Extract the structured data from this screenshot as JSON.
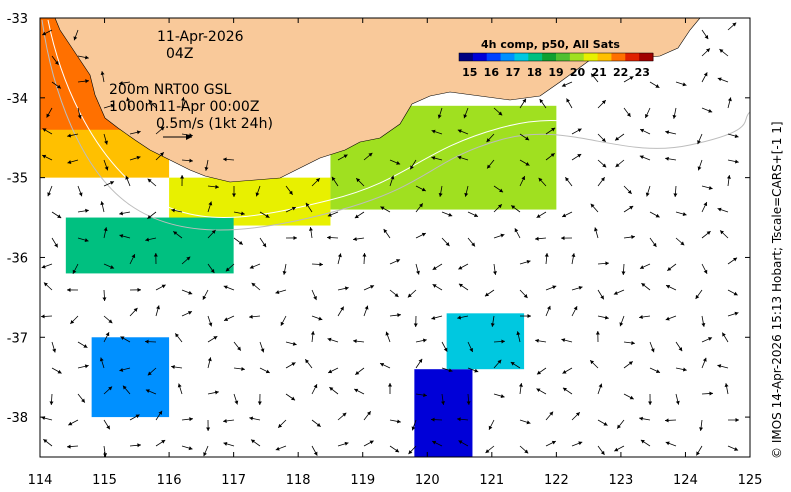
{
  "chart_data": {
    "type": "map",
    "region": {
      "lon": [
        114,
        125
      ],
      "lat": [
        -38.5,
        -33
      ]
    },
    "x_ticks": [
      114,
      115,
      116,
      117,
      118,
      119,
      120,
      121,
      122,
      123,
      124,
      125
    ],
    "y_ticks": [
      -33,
      -34,
      -35,
      -36,
      -37,
      -38
    ],
    "date": "11-Apr-2026",
    "time": "04Z",
    "depth_line_1": "200m  NRT00 GSL",
    "depth_line_2": "1000m11-Apr 00:00Z",
    "scale_label": "0.5m/s (1kt 24h)",
    "colorbar": {
      "title": "4h comp, p50, All Sats",
      "ticks": [
        15,
        16,
        17,
        18,
        19,
        20,
        21,
        22,
        23
      ],
      "range": [
        14.5,
        23.5
      ],
      "colors": [
        "#000080",
        "#0000d8",
        "#0040ff",
        "#0090ff",
        "#00c8e0",
        "#00c080",
        "#10a030",
        "#50c030",
        "#a0e020",
        "#e8f000",
        "#ffc000",
        "#ff7000",
        "#e02000",
        "#a00000"
      ]
    },
    "credit": "© IMOS 14-Apr-2026 15:13 Hobart; Tscale=CARS+[-1 1]",
    "land_color": "#f9c99a",
    "sst_patches": [
      {
        "lon": [
          114.0,
          116.0
        ],
        "lat": [
          -35.0,
          -33.0
        ],
        "temp": 21.4
      },
      {
        "lon": [
          114.0,
          115.4
        ],
        "lat": [
          -34.4,
          -33.0
        ],
        "temp": 21.9
      },
      {
        "lon": [
          116.0,
          118.5
        ],
        "lat": [
          -35.6,
          -35.0
        ],
        "temp": 20.3
      },
      {
        "lon": [
          118.5,
          122.0
        ],
        "lat": [
          -35.4,
          -34.1
        ],
        "temp": 19.8
      },
      {
        "lon": [
          114.4,
          117.0
        ],
        "lat": [
          -36.2,
          -35.5
        ],
        "temp": 18.3
      },
      {
        "lon": [
          114.8,
          116.0
        ],
        "lat": [
          -38.0,
          -37.0
        ],
        "temp": 17.0
      },
      {
        "lon": [
          119.8,
          120.7
        ],
        "lat": [
          -38.5,
          -37.4
        ],
        "temp": 15.2
      },
      {
        "lon": [
          120.3,
          121.5
        ],
        "lat": [
          -37.4,
          -36.7
        ],
        "temp": 17.7
      }
    ]
  }
}
